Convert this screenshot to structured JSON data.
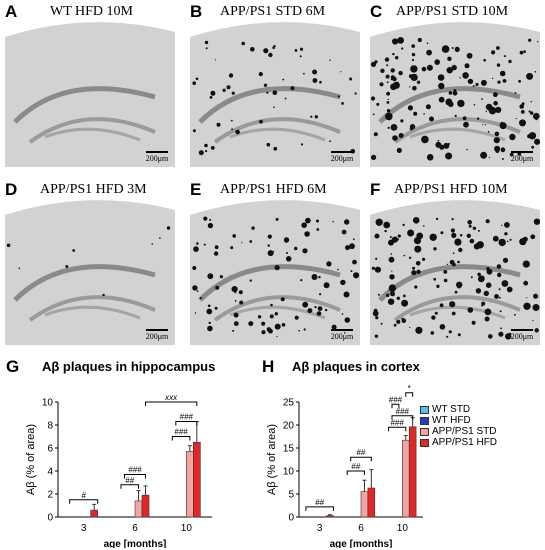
{
  "panels": [
    {
      "letter": "A",
      "title": "WT HFD 10M",
      "scale": "200μm",
      "plaque_density": 0
    },
    {
      "letter": "B",
      "title": "APP/PS1 STD 6M",
      "scale": "200μm",
      "plaque_density": 0.35
    },
    {
      "letter": "C",
      "title": "APP/PS1 STD 10M",
      "scale": "200μm",
      "plaque_density": 0.95
    },
    {
      "letter": "D",
      "title": "APP/PS1 HFD 3M",
      "scale": "200μm",
      "plaque_density": 0.05
    },
    {
      "letter": "E",
      "title": "APP/PS1 HFD 6M",
      "scale": "200μm",
      "plaque_density": 0.6
    },
    {
      "letter": "F",
      "title": "APP/PS1 HFD 10M",
      "scale": "200μm",
      "plaque_density": 0.9
    }
  ],
  "legend": {
    "items": [
      {
        "label": "WT STD",
        "color": "#4fc3e8"
      },
      {
        "label": "WT HFD",
        "color": "#1f3fbf"
      },
      {
        "label": "APP/PS1 STD",
        "color": "#f4a3a3"
      },
      {
        "label": "APP/PS1 HFD",
        "color": "#e02828"
      }
    ]
  },
  "chart_data": [
    {
      "letter": "G",
      "type": "bar",
      "title": "Aβ plaques in hippocampus",
      "xlabel": "age [months]",
      "ylabel": "Aβ (% of area)",
      "ylim": [
        0,
        10
      ],
      "yticks": [
        "0",
        "2",
        "4",
        "6",
        "8",
        "10"
      ],
      "categories": [
        "3",
        "6",
        "10"
      ],
      "series": [
        {
          "name": "WT STD",
          "values": [
            0,
            0,
            0
          ],
          "errors": [
            0,
            0,
            0
          ]
        },
        {
          "name": "WT HFD",
          "values": [
            0,
            0,
            0
          ],
          "errors": [
            0,
            0,
            0
          ]
        },
        {
          "name": "APP/PS1 STD",
          "values": [
            null,
            1.4,
            5.7
          ],
          "errors": [
            0,
            0.9,
            0.5
          ]
        },
        {
          "name": "APP/PS1 HFD",
          "values": [
            0.6,
            1.9,
            6.5
          ],
          "errors": [
            0.5,
            0.8,
            1.8
          ]
        }
      ],
      "annotations": [
        "#",
        "##",
        "###",
        "###",
        "###",
        "xxx"
      ]
    },
    {
      "letter": "H",
      "type": "bar",
      "title": "Aβ plaques in cortex",
      "xlabel": "age [months]",
      "ylabel": "Aβ (% of area)",
      "ylim": [
        0,
        25
      ],
      "yticks": [
        "0",
        "5",
        "10",
        "15",
        "20",
        "25"
      ],
      "categories": [
        "3",
        "6",
        "10"
      ],
      "series": [
        {
          "name": "WT STD",
          "values": [
            0,
            0,
            0
          ],
          "errors": [
            0,
            0,
            0
          ]
        },
        {
          "name": "WT HFD",
          "values": [
            0,
            0,
            0
          ],
          "errors": [
            0,
            0,
            0
          ]
        },
        {
          "name": "APP/PS1 STD",
          "values": [
            null,
            5.5,
            16.7
          ],
          "errors": [
            0,
            2.5,
            1.0
          ]
        },
        {
          "name": "APP/PS1 HFD",
          "values": [
            0.3,
            6.3,
            19.6
          ],
          "errors": [
            0.2,
            4.0,
            2.0
          ]
        }
      ],
      "annotations": [
        "##",
        "##",
        "##",
        "###",
        "###",
        "###",
        "*"
      ]
    }
  ]
}
